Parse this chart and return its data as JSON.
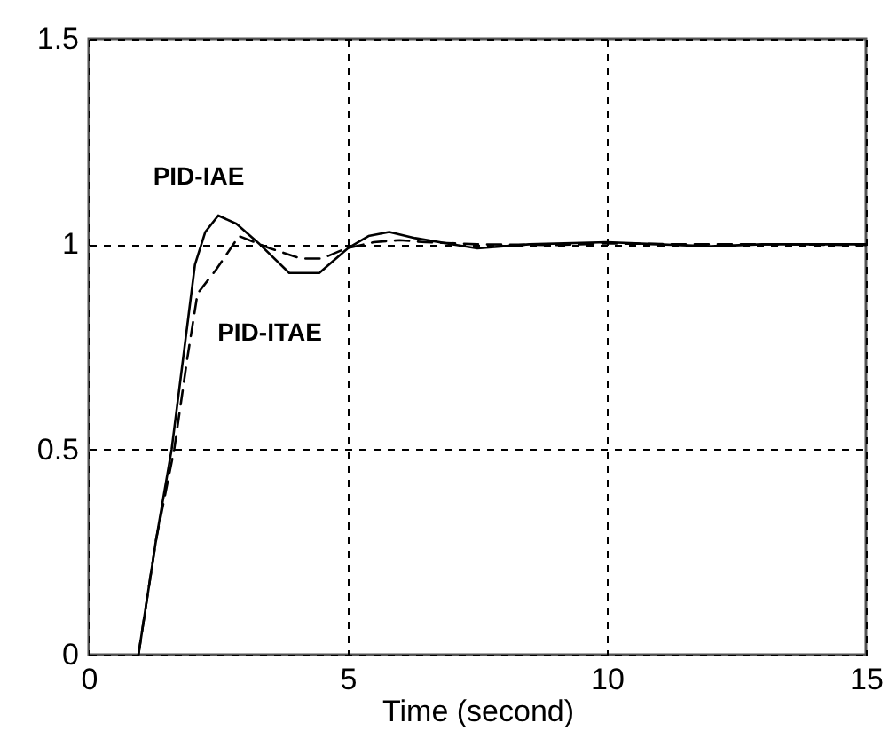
{
  "chart_data": {
    "type": "line",
    "xlabel": "Time (second)",
    "xlim": [
      0,
      15
    ],
    "ylim": [
      0,
      1.5
    ],
    "xticks": [
      0,
      5,
      10,
      15
    ],
    "yticks": [
      0,
      0.5,
      1,
      1.5
    ],
    "grid": true,
    "series": [
      {
        "color": "#000000",
        "line_style": "solid",
        "x": [
          0.96,
          1.3,
          1.6,
          1.85,
          2.05,
          2.25,
          2.5,
          2.85,
          3.3,
          3.87,
          4.45,
          5.0,
          5.4,
          5.8,
          6.3,
          7.0,
          7.5,
          8.5,
          10,
          11,
          12,
          13,
          14,
          15
        ],
        "values": [
          0,
          0.28,
          0.5,
          0.75,
          0.95,
          1.03,
          1.07,
          1.05,
          1.0,
          0.93,
          0.93,
          0.99,
          1.02,
          1.03,
          1.015,
          1.0,
          0.99,
          1.0,
          1.005,
          1.0,
          0.995,
          1.0,
          1.0,
          1.0
        ]
      },
      {
        "color": "#000000",
        "line_style": "dashed",
        "x": [
          0.96,
          1.3,
          1.65,
          1.9,
          2.1,
          2.47,
          2.9,
          3.5,
          4.1,
          4.5,
          4.97,
          5.5,
          6.0,
          6.5,
          7.5,
          9,
          10,
          11.5,
          13,
          15
        ],
        "values": [
          0,
          0.28,
          0.5,
          0.72,
          0.88,
          0.94,
          1.02,
          0.99,
          0.965,
          0.965,
          0.99,
          1.005,
          1.01,
          1.005,
          1.0,
          0.998,
          1.002,
          1.0,
          1.0,
          0.998
        ]
      }
    ],
    "annotations": [
      "PID-IAE",
      "PID-ITAE"
    ]
  }
}
